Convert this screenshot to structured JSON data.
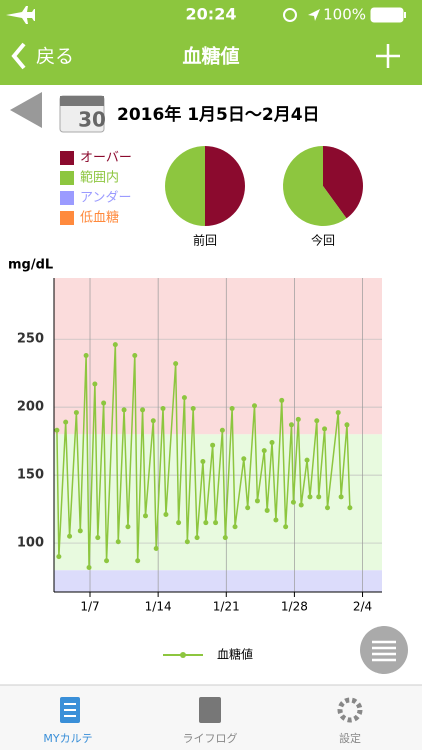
{
  "status_bar": {
    "time": "20:24",
    "battery": "100%"
  },
  "nav": {
    "back": "戻る",
    "title": "血糖値"
  },
  "calendar_day": "30",
  "period": "2016年 1月5日〜2月4日",
  "legend": [
    {
      "label": "オーバー",
      "color": "#8b0a2e"
    },
    {
      "label": "範囲内",
      "color": "#8dc63f"
    },
    {
      "label": "アンダー",
      "color": "#9b9bff"
    },
    {
      "label": "低血糖",
      "color": "#ff8a3d"
    }
  ],
  "pies": [
    {
      "label": "前回",
      "segments": [
        {
          "value": 50,
          "color": "#8b0a2e"
        },
        {
          "value": 50,
          "color": "#8dc63f"
        }
      ]
    },
    {
      "label": "今回",
      "segments": [
        {
          "value": 40,
          "color": "#8b0a2e"
        },
        {
          "value": 60,
          "color": "#8dc63f"
        }
      ]
    }
  ],
  "chart_data": {
    "type": "line",
    "y_label": "mg/dL",
    "x": [
      3.6,
      3.8,
      4.5,
      4.9,
      5.6,
      6.0,
      6.6,
      6.9,
      7.5,
      7.8,
      8.4,
      8.7,
      9.6,
      9.9,
      10.5,
      10.9,
      11.6,
      11.9,
      12.4,
      12.7,
      13.5,
      13.8,
      14.5,
      14.8,
      15.8,
      16.1,
      16.7,
      17.0,
      17.6,
      18.0,
      18.6,
      18.9,
      19.6,
      19.9,
      20.6,
      20.9,
      21.6,
      21.9,
      22.8,
      23.2,
      23.9,
      24.2,
      24.9,
      25.2,
      25.7,
      26.1,
      26.7,
      27.1,
      27.7,
      27.9,
      28.4,
      28.7,
      29.3,
      29.6,
      30.3,
      30.5,
      31.1,
      31.4,
      32.5,
      32.8,
      33.4,
      33.7
    ],
    "series": [
      {
        "name": "血糖値",
        "color": "#8dc63f",
        "values": [
          183,
          90,
          189,
          105,
          196,
          109,
          238,
          82,
          217,
          104,
          203,
          87,
          246,
          101,
          198,
          112,
          238,
          87,
          198,
          120,
          190,
          96,
          199,
          121,
          232,
          115,
          207,
          101,
          199,
          104,
          160,
          115,
          172,
          115,
          183,
          104,
          199,
          112,
          162,
          126,
          201,
          131,
          168,
          124,
          174,
          117,
          205,
          112,
          187,
          130,
          191,
          128,
          161,
          134,
          190,
          134,
          184,
          126,
          196,
          134,
          187,
          126
        ]
      }
    ],
    "xlim": [
      3.3,
      37
    ],
    "xticks": [
      {
        "value": 7,
        "label": "1/7"
      },
      {
        "value": 14,
        "label": "1/14"
      },
      {
        "value": 21,
        "label": "1/21"
      },
      {
        "value": 28,
        "label": "1/28"
      },
      {
        "value": 35,
        "label": "2/4"
      }
    ],
    "ylim": [
      64,
      295
    ],
    "yticks": [
      100,
      150,
      200,
      250
    ],
    "bands": [
      {
        "from": 180,
        "to": 295,
        "color": "#fbdcdc"
      },
      {
        "from": 80,
        "to": 180,
        "color": "#e8fadf"
      },
      {
        "from": 64,
        "to": 80,
        "color": "#dcdcfb"
      }
    ],
    "grid": true
  },
  "tab_bar": [
    {
      "label": "MYカルテ",
      "active": true
    },
    {
      "label": "ライフログ",
      "active": false
    },
    {
      "label": "設定",
      "active": false
    }
  ]
}
